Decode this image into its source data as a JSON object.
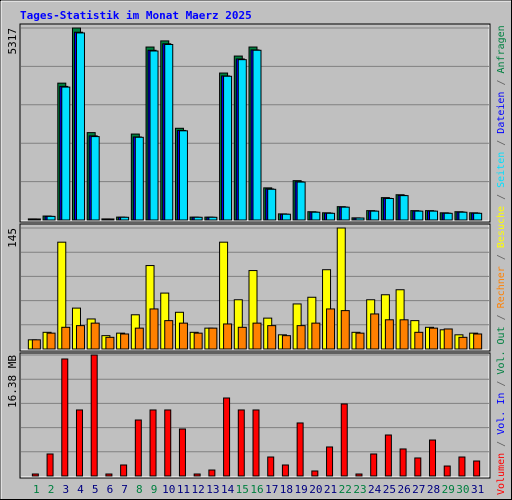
{
  "chart_data": {
    "type": "bar",
    "title": "Tages-Statistik im Monat Maerz 2025",
    "categories": [
      "1",
      "2",
      "3",
      "4",
      "5",
      "6",
      "7",
      "8",
      "9",
      "10",
      "11",
      "12",
      "13",
      "14",
      "15",
      "16",
      "17",
      "18",
      "19",
      "20",
      "21",
      "22",
      "23",
      "24",
      "25",
      "26",
      "27",
      "28",
      "29",
      "30",
      "31"
    ],
    "category_colors": [
      "#008040",
      "#008040",
      "#000080",
      "#000080",
      "#000080",
      "#000080",
      "#000080",
      "#008040",
      "#008040",
      "#000080",
      "#000080",
      "#000080",
      "#000080",
      "#000080",
      "#008040",
      "#008040",
      "#000080",
      "#000080",
      "#000080",
      "#000080",
      "#000080",
      "#008040",
      "#008040",
      "#000080",
      "#000080",
      "#000080",
      "#000080",
      "#000080",
      "#008040",
      "#008040",
      "#000080"
    ],
    "grid": true,
    "grid_divisions": 5,
    "panels": [
      {
        "ylim": [
          0,
          5317
        ],
        "yticks": [
          5317
        ],
        "series": [
          {
            "name": "Anfragen",
            "color": "#008040",
            "values": [
              30,
              110,
              3790,
              5317,
              2420,
              30,
              80,
              2380,
              4790,
              4960,
              2540,
              80,
              80,
              4070,
              4540,
              4790,
              890,
              170,
              1090,
              230,
              200,
              370,
              60,
              260,
              620,
              700,
              260,
              260,
              200,
              230,
              200
            ]
          },
          {
            "name": "Dateien",
            "color": "#0000ff",
            "values": [
              28,
              100,
              3700,
              5200,
              2330,
              28,
              75,
              2300,
              4700,
              4880,
              2480,
              75,
              75,
              3990,
              4460,
              4710,
              860,
              160,
              1060,
              220,
              190,
              360,
              55,
              250,
              600,
              680,
              250,
              250,
              190,
              220,
              190
            ]
          },
          {
            "name": "Seiten",
            "color": "#00e0ff",
            "values": [
              28,
              100,
              3680,
              5180,
              2310,
              28,
              75,
              2290,
              4680,
              4860,
              2470,
              75,
              75,
              3980,
              4440,
              4700,
              850,
              160,
              1050,
              215,
              185,
              355,
              55,
              245,
              595,
              675,
              245,
              245,
              185,
              215,
              185
            ]
          }
        ]
      },
      {
        "ylim": [
          0,
          145
        ],
        "yticks": [
          145
        ],
        "series": [
          {
            "name": "Besuche",
            "color": "#ffff00",
            "values": [
              11,
              20,
              128,
              49,
              36,
              16,
              19,
              41,
              100,
              67,
              44,
              20,
              25,
              128,
              59,
              94,
              37,
              17,
              54,
              62,
              95,
              145,
              20,
              59,
              65,
              71,
              34,
              26,
              23,
              17,
              19
            ]
          },
          {
            "name": "Rechner",
            "color": "#ff8000",
            "values": [
              11,
              19,
              26,
              28,
              31,
              14,
              18,
              25,
              48,
              34,
              31,
              19,
              25,
              30,
              26,
              31,
              28,
              16,
              28,
              31,
              48,
              46,
              19,
              42,
              35,
              35,
              20,
              25,
              24,
              14,
              18
            ]
          }
        ]
      },
      {
        "ylim": [
          0,
          16.38
        ],
        "yticks": [
          {
            "value": 16.38,
            "label": "16.38 MB"
          }
        ],
        "series": [
          {
            "name": "Volumen",
            "color": "#ff0000",
            "values": [
              0.27,
              2.98,
              15.84,
              8.94,
              16.38,
              0.27,
              1.49,
              7.58,
              8.94,
              8.94,
              6.36,
              0.27,
              0.81,
              10.56,
              8.94,
              8.94,
              2.57,
              1.49,
              7.18,
              0.68,
              3.93,
              9.75,
              0.27,
              2.98,
              5.55,
              3.66,
              2.44,
              4.87,
              1.35,
              2.57,
              2.03
            ]
          }
        ],
        "legend_extra": [
          {
            "name": "Vol. In",
            "color": "#0000ff"
          },
          {
            "name": "Vol. Out",
            "color": "#008040"
          }
        ]
      }
    ]
  }
}
